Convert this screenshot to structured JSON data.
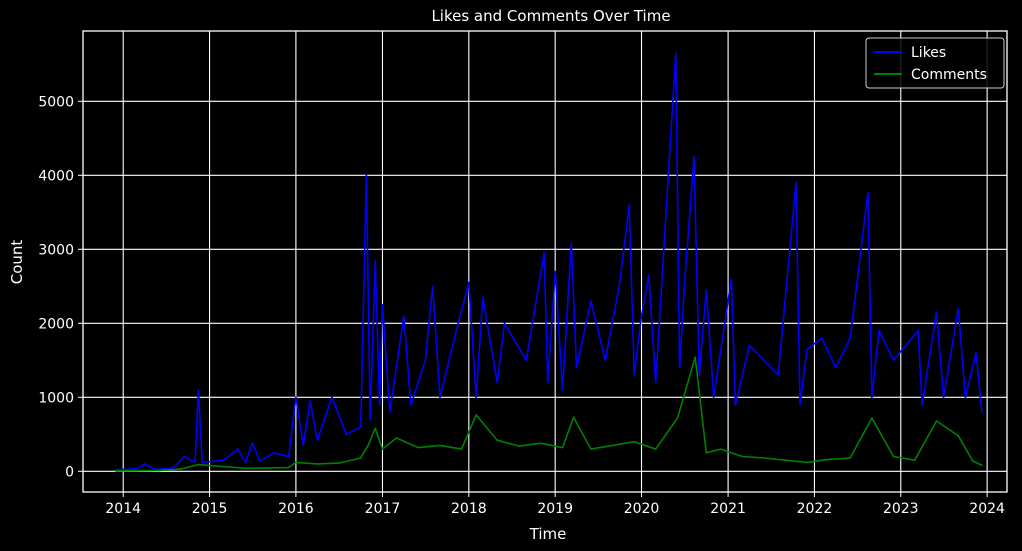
{
  "chart_data": {
    "type": "line",
    "title": "Likes and Comments Over Time",
    "xlabel": "Time",
    "ylabel": "Count",
    "xlim": [
      "2013-07-15",
      "2024-03-25"
    ],
    "ylim": [
      -280,
      5950
    ],
    "x_ticks": [
      "2014",
      "2015",
      "2016",
      "2017",
      "2018",
      "2019",
      "2020",
      "2021",
      "2022",
      "2023",
      "2024"
    ],
    "y_ticks": [
      0,
      1000,
      2000,
      3000,
      4000,
      5000
    ],
    "grid": true,
    "legend": "top-right",
    "background": "#000000",
    "series": [
      {
        "name": "Likes",
        "color": "#0000ff",
        "points": [
          [
            "2013-12-01",
            20
          ],
          [
            "2014-03-01",
            35
          ],
          [
            "2014-04-01",
            100
          ],
          [
            "2014-05-15",
            25
          ],
          [
            "2014-08-01",
            45
          ],
          [
            "2014-09-15",
            200
          ],
          [
            "2014-11-01",
            120
          ],
          [
            "2014-11-15",
            1100
          ],
          [
            "2014-12-01",
            120
          ],
          [
            "2015-03-01",
            150
          ],
          [
            "2015-05-01",
            300
          ],
          [
            "2015-06-01",
            120
          ],
          [
            "2015-07-01",
            380
          ],
          [
            "2015-08-01",
            140
          ],
          [
            "2015-10-01",
            250
          ],
          [
            "2015-12-01",
            200
          ],
          [
            "2016-01-01",
            1000
          ],
          [
            "2016-02-01",
            350
          ],
          [
            "2016-03-01",
            950
          ],
          [
            "2016-04-01",
            420
          ],
          [
            "2016-06-01",
            1000
          ],
          [
            "2016-08-01",
            500
          ],
          [
            "2016-10-01",
            600
          ],
          [
            "2016-10-25",
            4000
          ],
          [
            "2016-11-10",
            700
          ],
          [
            "2016-12-01",
            2850
          ],
          [
            "2016-12-20",
            900
          ],
          [
            "2017-01-01",
            2250
          ],
          [
            "2017-02-01",
            800
          ],
          [
            "2017-04-01",
            2100
          ],
          [
            "2017-05-01",
            900
          ],
          [
            "2017-07-01",
            1500
          ],
          [
            "2017-08-01",
            2500
          ],
          [
            "2017-09-01",
            1000
          ],
          [
            "2017-11-01",
            1800
          ],
          [
            "2018-01-01",
            2550
          ],
          [
            "2018-02-01",
            1000
          ],
          [
            "2018-03-01",
            2350
          ],
          [
            "2018-05-01",
            1200
          ],
          [
            "2018-06-01",
            2000
          ],
          [
            "2018-09-01",
            1500
          ],
          [
            "2018-11-15",
            2950
          ],
          [
            "2018-12-01",
            1200
          ],
          [
            "2019-01-01",
            2700
          ],
          [
            "2019-02-01",
            1100
          ],
          [
            "2019-03-10",
            3080
          ],
          [
            "2019-04-01",
            1400
          ],
          [
            "2019-06-01",
            2300
          ],
          [
            "2019-08-01",
            1500
          ],
          [
            "2019-10-01",
            2550
          ],
          [
            "2019-11-10",
            3600
          ],
          [
            "2019-12-01",
            1300
          ],
          [
            "2020-01-01",
            2100
          ],
          [
            "2020-02-01",
            2650
          ],
          [
            "2020-03-01",
            1200
          ],
          [
            "2020-05-25",
            5650
          ],
          [
            "2020-06-10",
            1400
          ],
          [
            "2020-07-01",
            2550
          ],
          [
            "2020-08-10",
            4250
          ],
          [
            "2020-09-01",
            1300
          ],
          [
            "2020-10-01",
            2450
          ],
          [
            "2020-11-01",
            1000
          ],
          [
            "2021-01-15",
            2600
          ],
          [
            "2021-02-01",
            900
          ],
          [
            "2021-04-01",
            1700
          ],
          [
            "2021-06-01",
            1500
          ],
          [
            "2021-08-01",
            1300
          ],
          [
            "2021-10-15",
            3900
          ],
          [
            "2021-11-01",
            900
          ],
          [
            "2021-12-01",
            1650
          ],
          [
            "2022-02-01",
            1800
          ],
          [
            "2022-04-01",
            1400
          ],
          [
            "2022-06-01",
            1800
          ],
          [
            "2022-08-15",
            3770
          ],
          [
            "2022-09-01",
            1000
          ],
          [
            "2022-10-01",
            1900
          ],
          [
            "2022-12-01",
            1500
          ],
          [
            "2023-03-15",
            1900
          ],
          [
            "2023-04-01",
            900
          ],
          [
            "2023-06-01",
            2150
          ],
          [
            "2023-07-01",
            1000
          ],
          [
            "2023-09-01",
            2200
          ],
          [
            "2023-10-01",
            1000
          ],
          [
            "2023-11-15",
            1600
          ],
          [
            "2023-12-10",
            800
          ]
        ]
      },
      {
        "name": "Comments",
        "color": "#008000",
        "points": [
          [
            "2013-12-01",
            5
          ],
          [
            "2014-06-01",
            10
          ],
          [
            "2014-09-01",
            30
          ],
          [
            "2014-11-15",
            90
          ],
          [
            "2015-06-01",
            40
          ],
          [
            "2015-12-01",
            50
          ],
          [
            "2016-01-01",
            120
          ],
          [
            "2016-04-01",
            100
          ],
          [
            "2016-07-01",
            110
          ],
          [
            "2016-10-01",
            180
          ],
          [
            "2016-11-01",
            350
          ],
          [
            "2016-12-01",
            580
          ],
          [
            "2017-01-01",
            300
          ],
          [
            "2017-03-01",
            450
          ],
          [
            "2017-06-01",
            320
          ],
          [
            "2017-09-01",
            350
          ],
          [
            "2017-12-01",
            300
          ],
          [
            "2018-02-01",
            760
          ],
          [
            "2018-05-01",
            420
          ],
          [
            "2018-08-01",
            340
          ],
          [
            "2018-11-01",
            380
          ],
          [
            "2019-02-01",
            320
          ],
          [
            "2019-03-20",
            730
          ],
          [
            "2019-06-01",
            300
          ],
          [
            "2019-09-01",
            350
          ],
          [
            "2019-12-01",
            400
          ],
          [
            "2020-03-01",
            300
          ],
          [
            "2020-06-01",
            720
          ],
          [
            "2020-08-15",
            1540
          ],
          [
            "2020-10-01",
            250
          ],
          [
            "2020-12-01",
            300
          ],
          [
            "2021-03-01",
            200
          ],
          [
            "2021-06-01",
            180
          ],
          [
            "2021-09-01",
            150
          ],
          [
            "2021-12-01",
            120
          ],
          [
            "2022-03-01",
            160
          ],
          [
            "2022-06-01",
            180
          ],
          [
            "2022-09-01",
            720
          ],
          [
            "2022-12-01",
            200
          ],
          [
            "2023-03-01",
            150
          ],
          [
            "2023-06-01",
            680
          ],
          [
            "2023-09-01",
            480
          ],
          [
            "2023-11-01",
            140
          ],
          [
            "2023-12-10",
            80
          ]
        ]
      }
    ]
  }
}
